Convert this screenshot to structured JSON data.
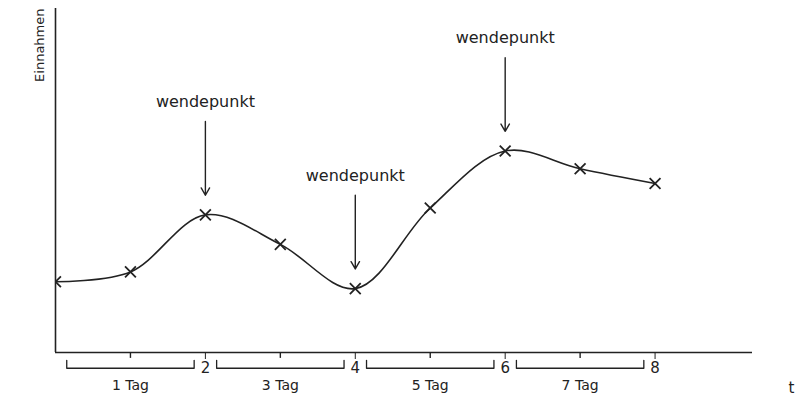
{
  "chart_data": {
    "type": "line",
    "y_label": "Einnahmen",
    "x_label": "t",
    "x": [
      0,
      1,
      2,
      3,
      4,
      5,
      6,
      7,
      8
    ],
    "values": [
      7.2,
      8.2,
      14,
      11,
      6.5,
      14.7,
      20.5,
      18.7,
      17.2
    ],
    "color": "#222222",
    "marker": "x",
    "xlim": [
      0,
      9.3
    ],
    "ylim": [
      0,
      35
    ],
    "xticks": [
      2,
      4,
      6,
      8
    ],
    "tick_labels": "x",
    "grid": false,
    "annotations": [
      {
        "x": 2,
        "text": "wendepunkt"
      },
      {
        "x": 4,
        "text": "wendepunkt"
      },
      {
        "x": 6,
        "text": "wendepunkt"
      }
    ],
    "periods": [
      {
        "x": 1,
        "label": "1 Tag"
      },
      {
        "x": 3,
        "label": "3 Tag"
      },
      {
        "x": 5,
        "label": "5 Tag"
      },
      {
        "x": 7,
        "label": "7 Tag"
      }
    ]
  }
}
